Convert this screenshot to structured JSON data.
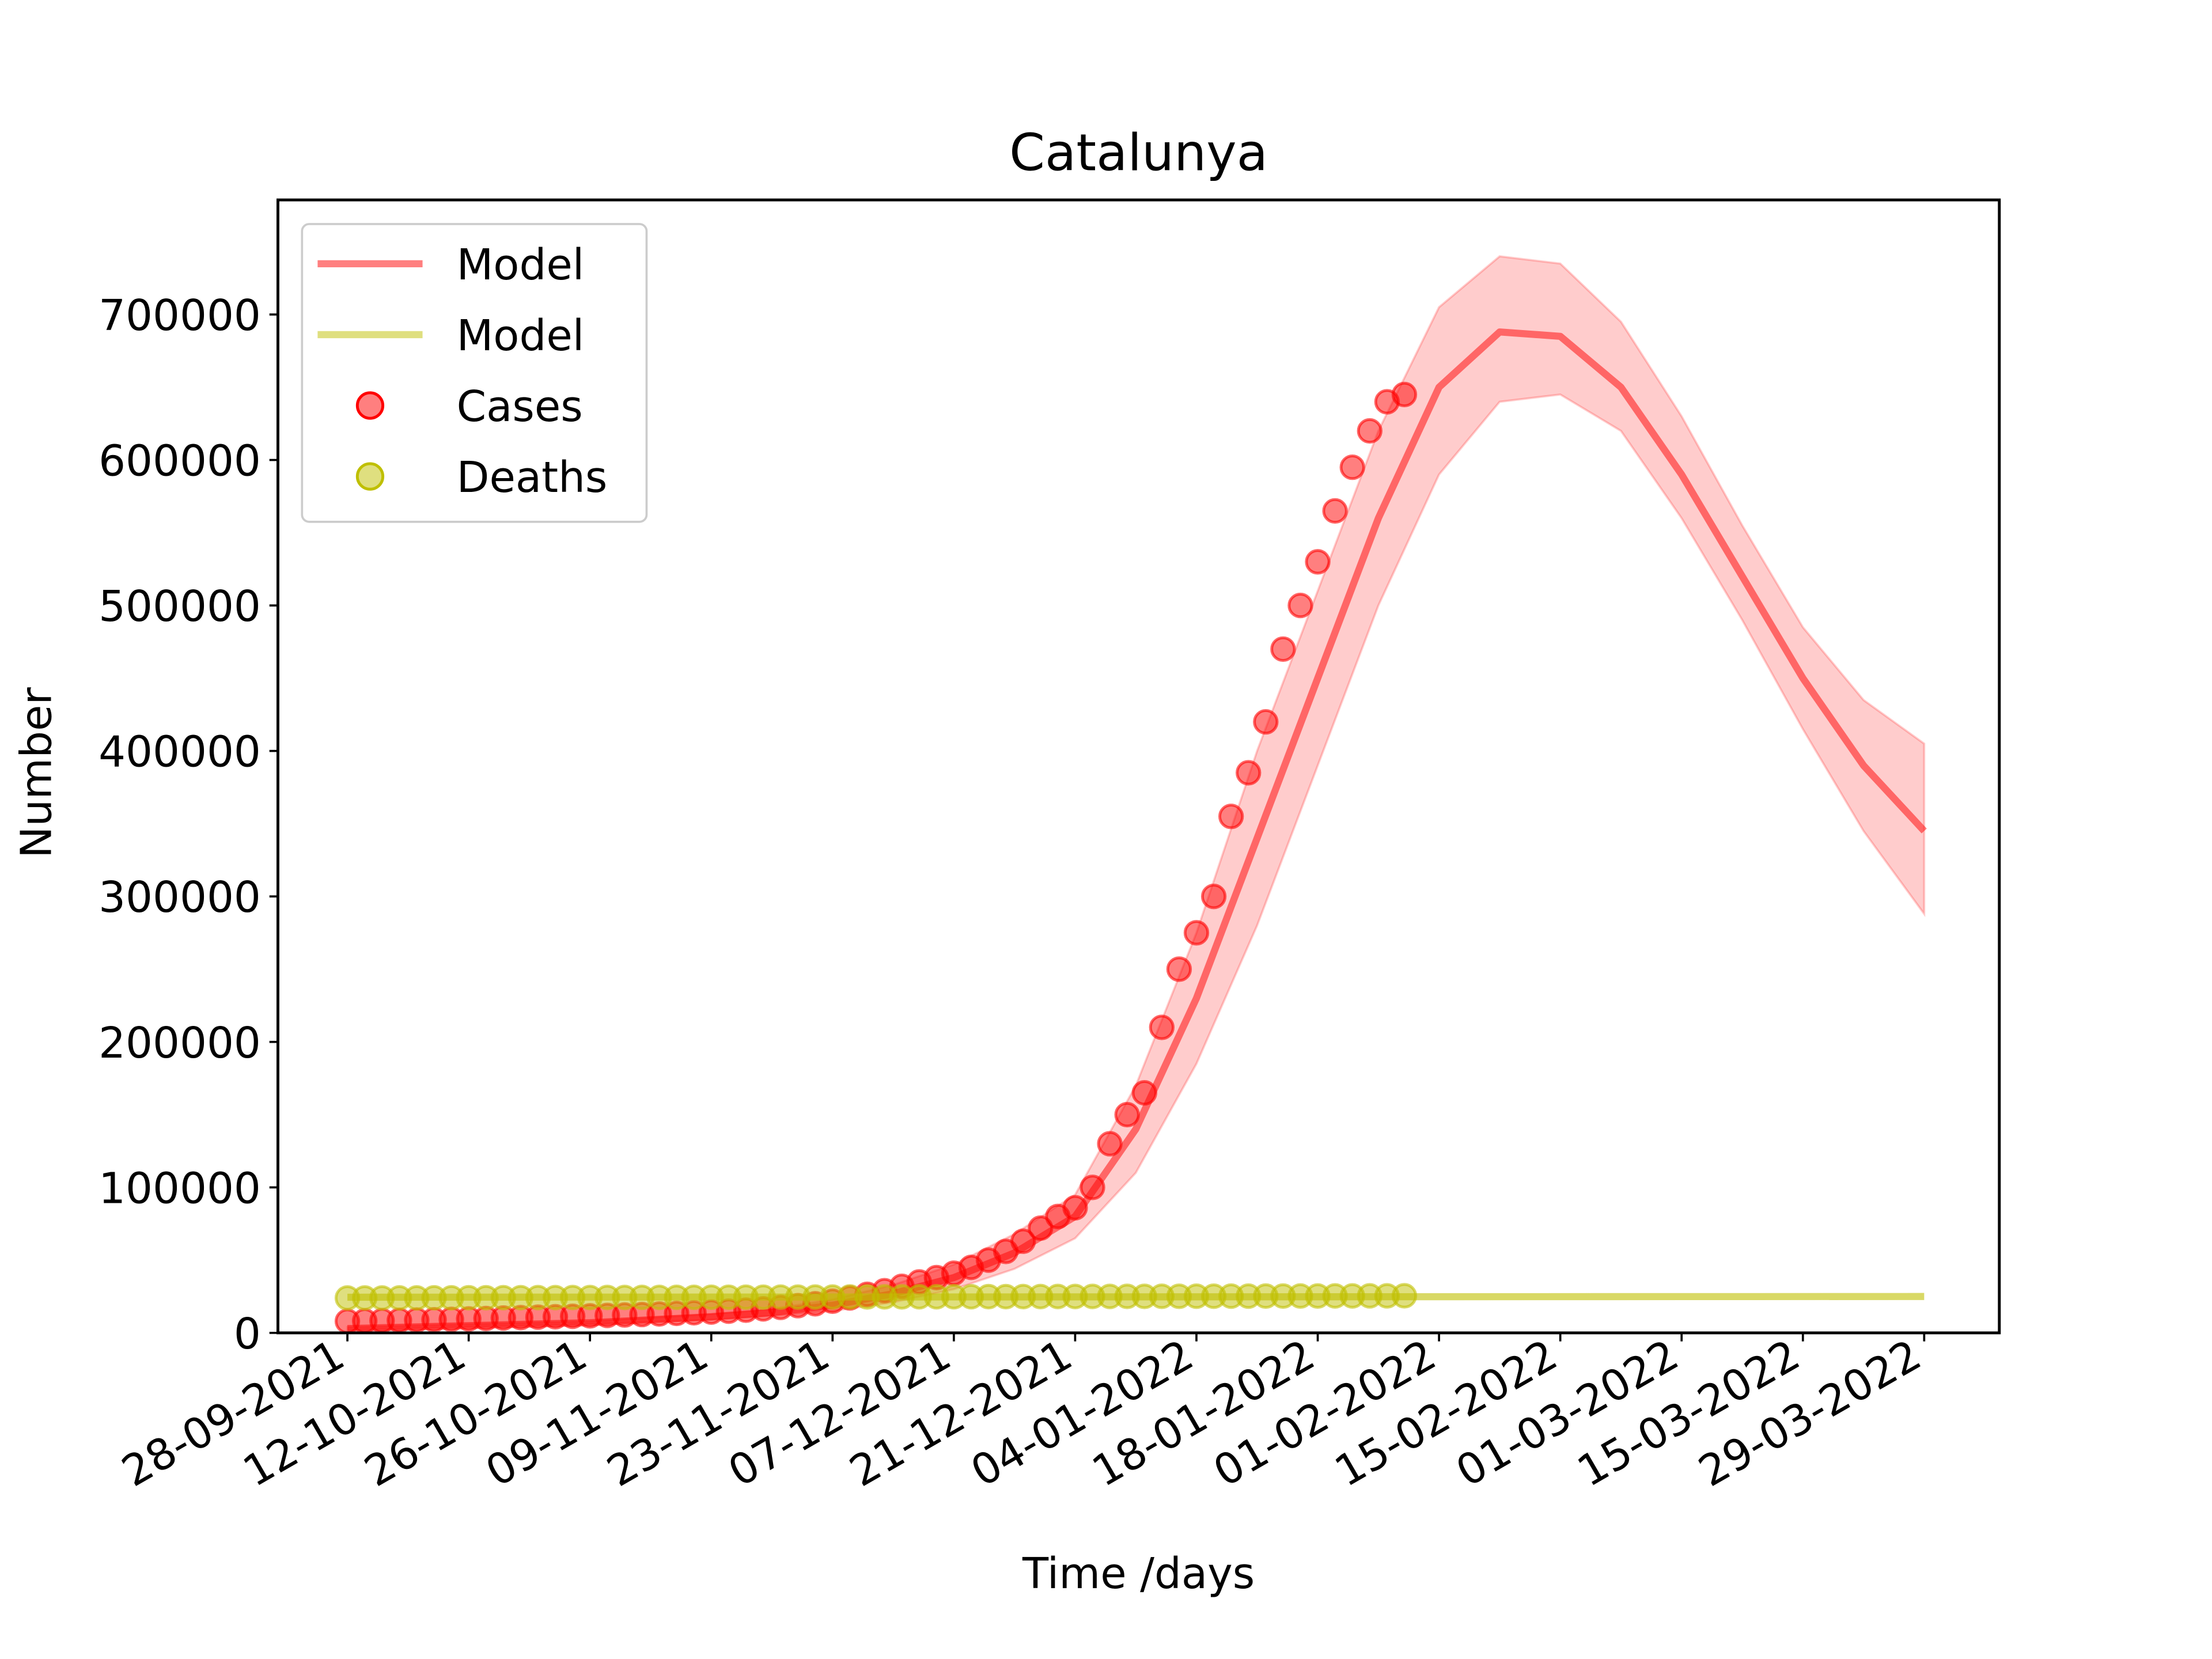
{
  "chart_data": {
    "type": "line",
    "title": "Catalunya",
    "xlabel": "Time /days",
    "ylabel": "Number",
    "ylim": [
      0,
      780000
    ],
    "xlim_days": [
      -8,
      191
    ],
    "y_ticks": [
      0,
      100000,
      200000,
      300000,
      400000,
      500000,
      600000,
      700000
    ],
    "x_tick_days": [
      0,
      14,
      28,
      42,
      56,
      70,
      84,
      98,
      112,
      126,
      140,
      154,
      168,
      182
    ],
    "x_tick_labels": [
      "28-09-2021",
      "12-10-2021",
      "26-10-2021",
      "09-11-2021",
      "23-11-2021",
      "07-12-2021",
      "21-12-2021",
      "04-01-2022",
      "18-01-2022",
      "01-02-2022",
      "15-02-2022",
      "01-03-2022",
      "15-03-2022",
      "29-03-2022"
    ],
    "grid": false,
    "legend": {
      "position": "top-left",
      "entries": [
        "Model",
        "Model",
        "Cases",
        "Deaths"
      ]
    },
    "colors": {
      "cases": "#ff0000",
      "deaths": "#bfbf00"
    },
    "model_cases": {
      "name": "Model",
      "x": [
        0,
        7,
        14,
        21,
        28,
        35,
        42,
        49,
        56,
        63,
        70,
        77,
        84,
        91,
        98,
        105,
        112,
        119,
        126,
        133,
        140,
        147,
        154,
        161,
        168,
        175,
        182
      ],
      "y": [
        3000,
        4000,
        5000,
        6000,
        7000,
        9000,
        11000,
        14000,
        19000,
        27000,
        38000,
        55000,
        80000,
        140000,
        230000,
        340000,
        450000,
        560000,
        650000,
        688000,
        685000,
        650000,
        590000,
        520000,
        450000,
        390000,
        345000
      ],
      "lower": [
        2000,
        3000,
        4000,
        5000,
        6000,
        7500,
        9000,
        11500,
        15000,
        21000,
        30000,
        44000,
        65000,
        110000,
        185000,
        280000,
        390000,
        500000,
        590000,
        640000,
        645000,
        620000,
        560000,
        490000,
        415000,
        345000,
        288000
      ],
      "upper": [
        4000,
        5000,
        6000,
        7000,
        8000,
        10500,
        13000,
        16500,
        23000,
        33000,
        47000,
        68000,
        95000,
        170000,
        275000,
        400000,
        510000,
        620000,
        705000,
        740000,
        735000,
        695000,
        630000,
        555000,
        485000,
        435000,
        405000
      ]
    },
    "model_deaths": {
      "name": "Model",
      "x": [
        0,
        182
      ],
      "y": [
        24500,
        25000
      ]
    },
    "cases": {
      "name": "Cases",
      "x": [
        0,
        2,
        4,
        6,
        8,
        10,
        12,
        14,
        16,
        18,
        20,
        22,
        24,
        26,
        28,
        30,
        32,
        34,
        36,
        38,
        40,
        42,
        44,
        46,
        48,
        50,
        52,
        54,
        56,
        58,
        60,
        62,
        64,
        66,
        68,
        70,
        72,
        74,
        76,
        78,
        80,
        82,
        84,
        86,
        88,
        90,
        92,
        94,
        96,
        98,
        100,
        102,
        104,
        106,
        108,
        110,
        112,
        114,
        116,
        118,
        120,
        122
      ],
      "y": [
        8000,
        8200,
        8400,
        8600,
        8800,
        9000,
        9300,
        9600,
        9900,
        10200,
        10500,
        10800,
        11100,
        11400,
        11700,
        12000,
        12300,
        12600,
        13000,
        13400,
        13800,
        14300,
        14900,
        15600,
        16500,
        17500,
        18700,
        20000,
        21800,
        24000,
        26500,
        29000,
        32000,
        35000,
        38000,
        41000,
        45000,
        50000,
        56000,
        63000,
        72000,
        80000,
        86000,
        100000,
        130000,
        150000,
        165000,
        210000,
        250000,
        275000,
        300000,
        355000,
        385000,
        420000,
        470000,
        500000,
        530000,
        565000,
        595000,
        620000,
        640000,
        645000
      ]
    },
    "deaths": {
      "name": "Deaths",
      "x": [
        0,
        2,
        4,
        6,
        8,
        10,
        12,
        14,
        16,
        18,
        20,
        22,
        24,
        26,
        28,
        30,
        32,
        34,
        36,
        38,
        40,
        42,
        44,
        46,
        48,
        50,
        52,
        54,
        56,
        58,
        60,
        62,
        64,
        66,
        68,
        70,
        72,
        74,
        76,
        78,
        80,
        82,
        84,
        86,
        88,
        90,
        92,
        94,
        96,
        98,
        100,
        102,
        104,
        106,
        108,
        110,
        112,
        114,
        116,
        118,
        120,
        122
      ],
      "y": [
        24000,
        24000,
        24000,
        24050,
        24050,
        24100,
        24100,
        24150,
        24150,
        24200,
        24200,
        24250,
        24250,
        24300,
        24300,
        24350,
        24350,
        24400,
        24400,
        24450,
        24450,
        24500,
        24500,
        24550,
        24550,
        24600,
        24600,
        24650,
        24650,
        24700,
        24700,
        24750,
        24750,
        24800,
        24800,
        24850,
        24850,
        24900,
        24900,
        24950,
        24950,
        25000,
        25000,
        25050,
        25050,
        25100,
        25100,
        25150,
        25150,
        25200,
        25200,
        25250,
        25250,
        25300,
        25300,
        25350,
        25350,
        25400,
        25400,
        25450,
        25450,
        25500
      ]
    }
  }
}
